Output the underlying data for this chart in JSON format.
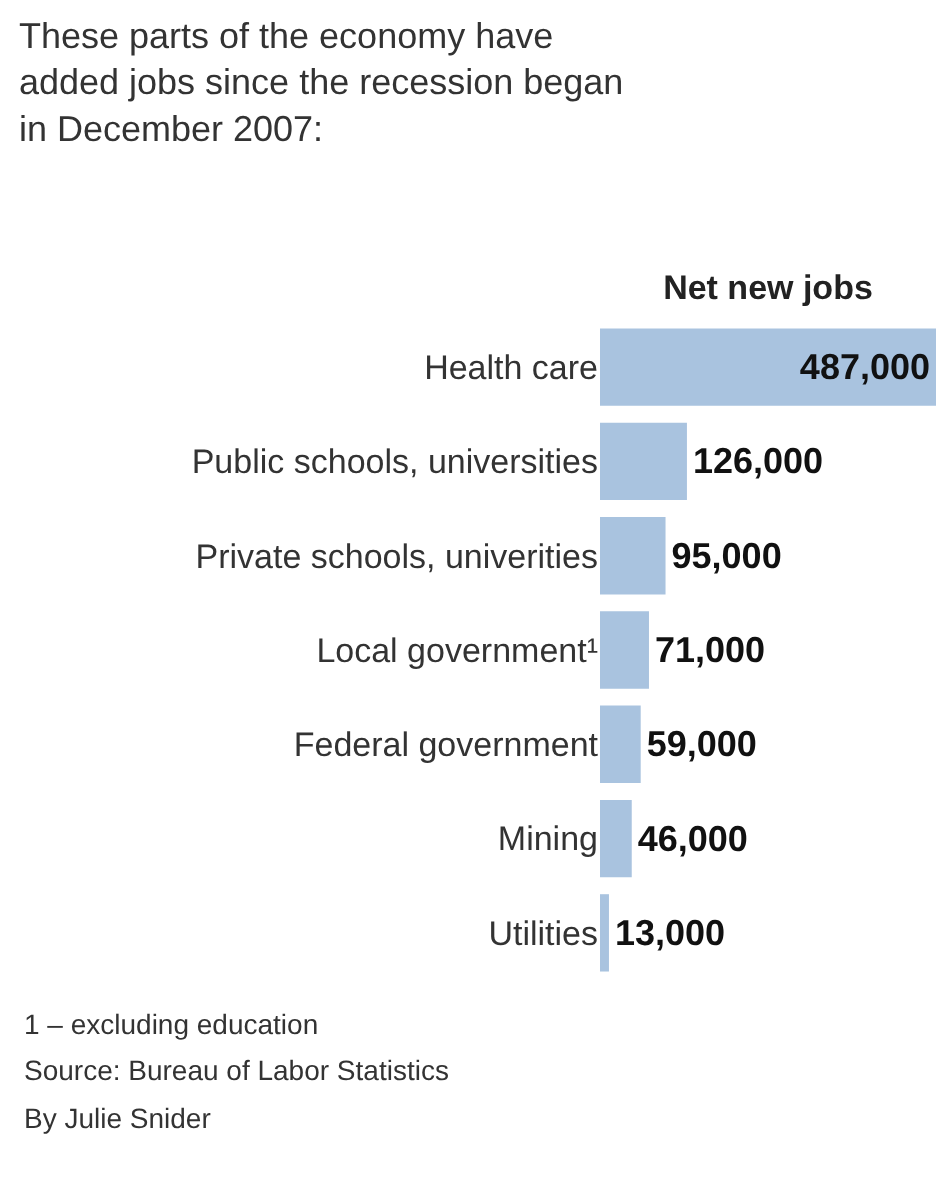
{
  "chart_data": {
    "type": "bar",
    "orientation": "horizontal",
    "title": "These parts of the economy have\nadded jobs since the recession began\nin December 2007:",
    "xlabel": "Net new jobs",
    "categories": [
      "Health care",
      "Public schools, universities",
      "Private schools, univerities",
      "Local government¹",
      "Federal government",
      "Mining",
      "Utilities"
    ],
    "values": [
      487000,
      126000,
      95000,
      71000,
      59000,
      46000,
      13000
    ],
    "color": "#a9c3df",
    "value_labels": [
      "487,000",
      "126,000",
      "95,000",
      "71,000",
      "59,000",
      "46,000",
      "13,000"
    ],
    "annotations": [
      "1 – excluding education",
      "Source: Bureau of Labor Statistics",
      "By Julie Snider"
    ]
  }
}
